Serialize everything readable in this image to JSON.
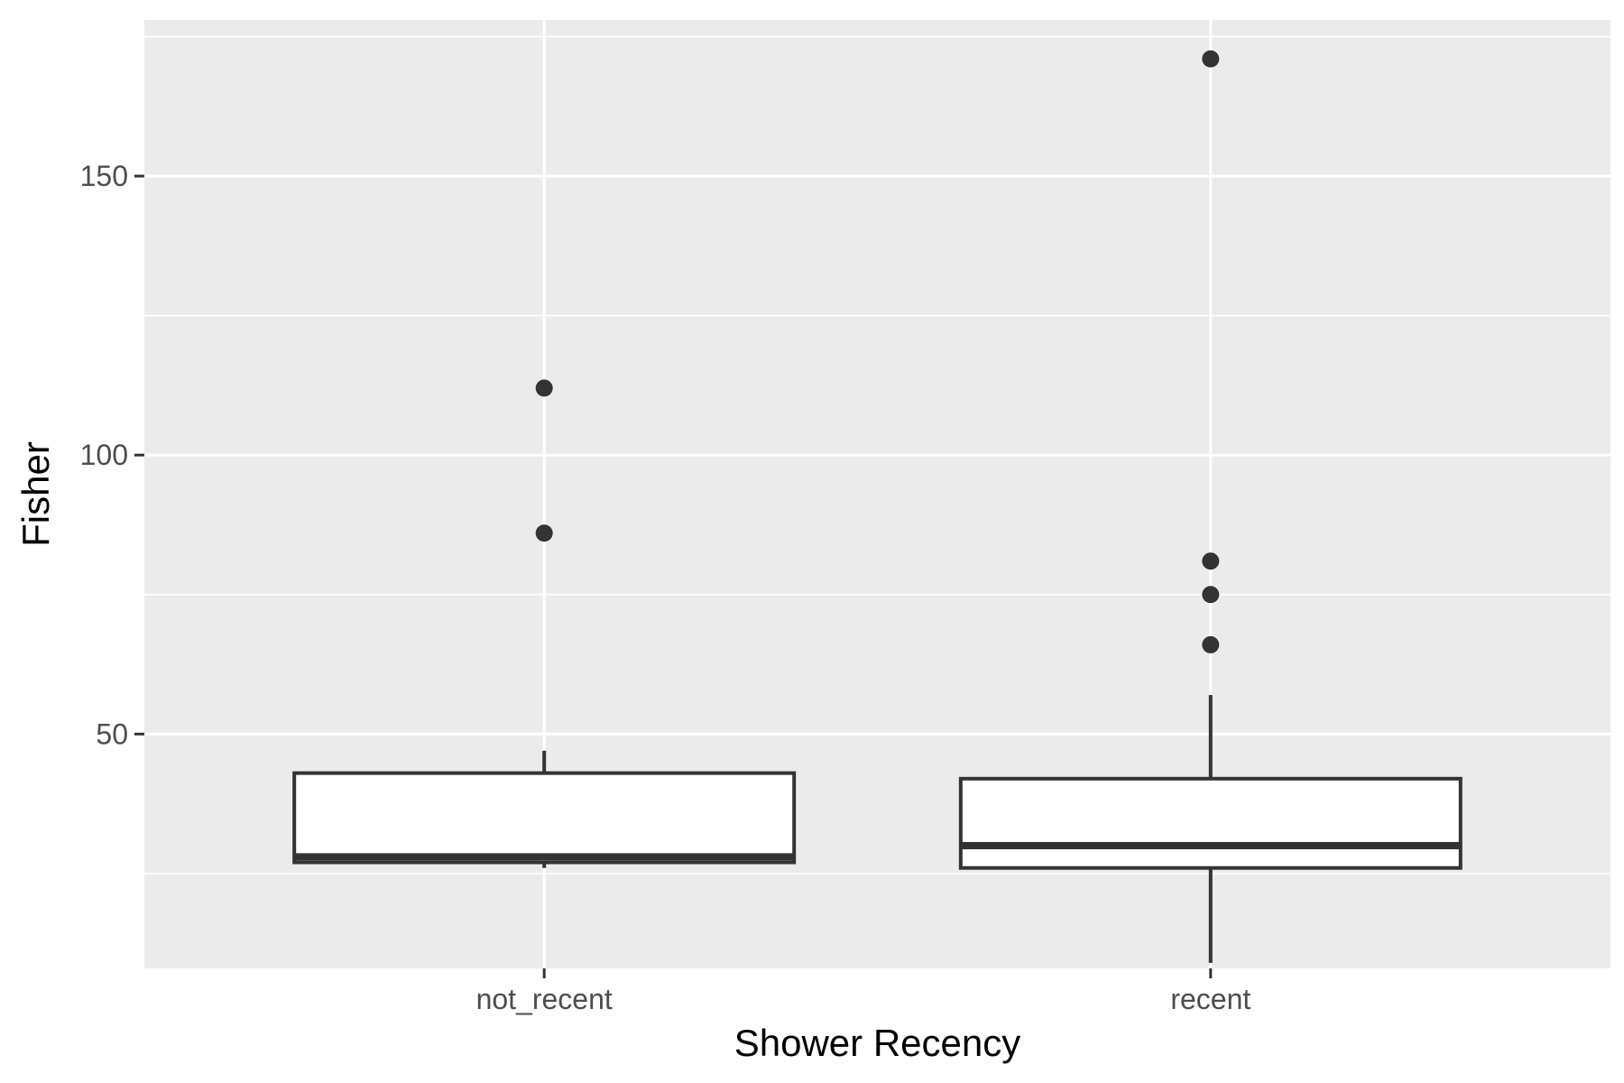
{
  "chart_data": {
    "type": "boxplot",
    "title": "",
    "xlabel": "Shower Recency",
    "ylabel": "Fisher",
    "ylim": [
      8,
      178
    ],
    "y_ticks": [
      50,
      100,
      150
    ],
    "y_minor_ticks": [
      25,
      75,
      125,
      175
    ],
    "grid": true,
    "categories": [
      "not_recent",
      "recent"
    ],
    "boxes": [
      {
        "category": "not_recent",
        "whisker_low": 26,
        "q1": 27,
        "median": 28,
        "q3": 43,
        "whisker_high": 47,
        "outliers": [
          86,
          112
        ]
      },
      {
        "category": "recent",
        "whisker_low": 9,
        "q1": 26,
        "median": 30,
        "q3": 42,
        "whisker_high": 57,
        "outliers": [
          66,
          75,
          81,
          171
        ]
      }
    ],
    "colors": {
      "panel": "#ebebeb",
      "grid": "#ffffff",
      "box_fill": "#ffffff",
      "box_line": "#333333",
      "point": "#333333"
    }
  }
}
